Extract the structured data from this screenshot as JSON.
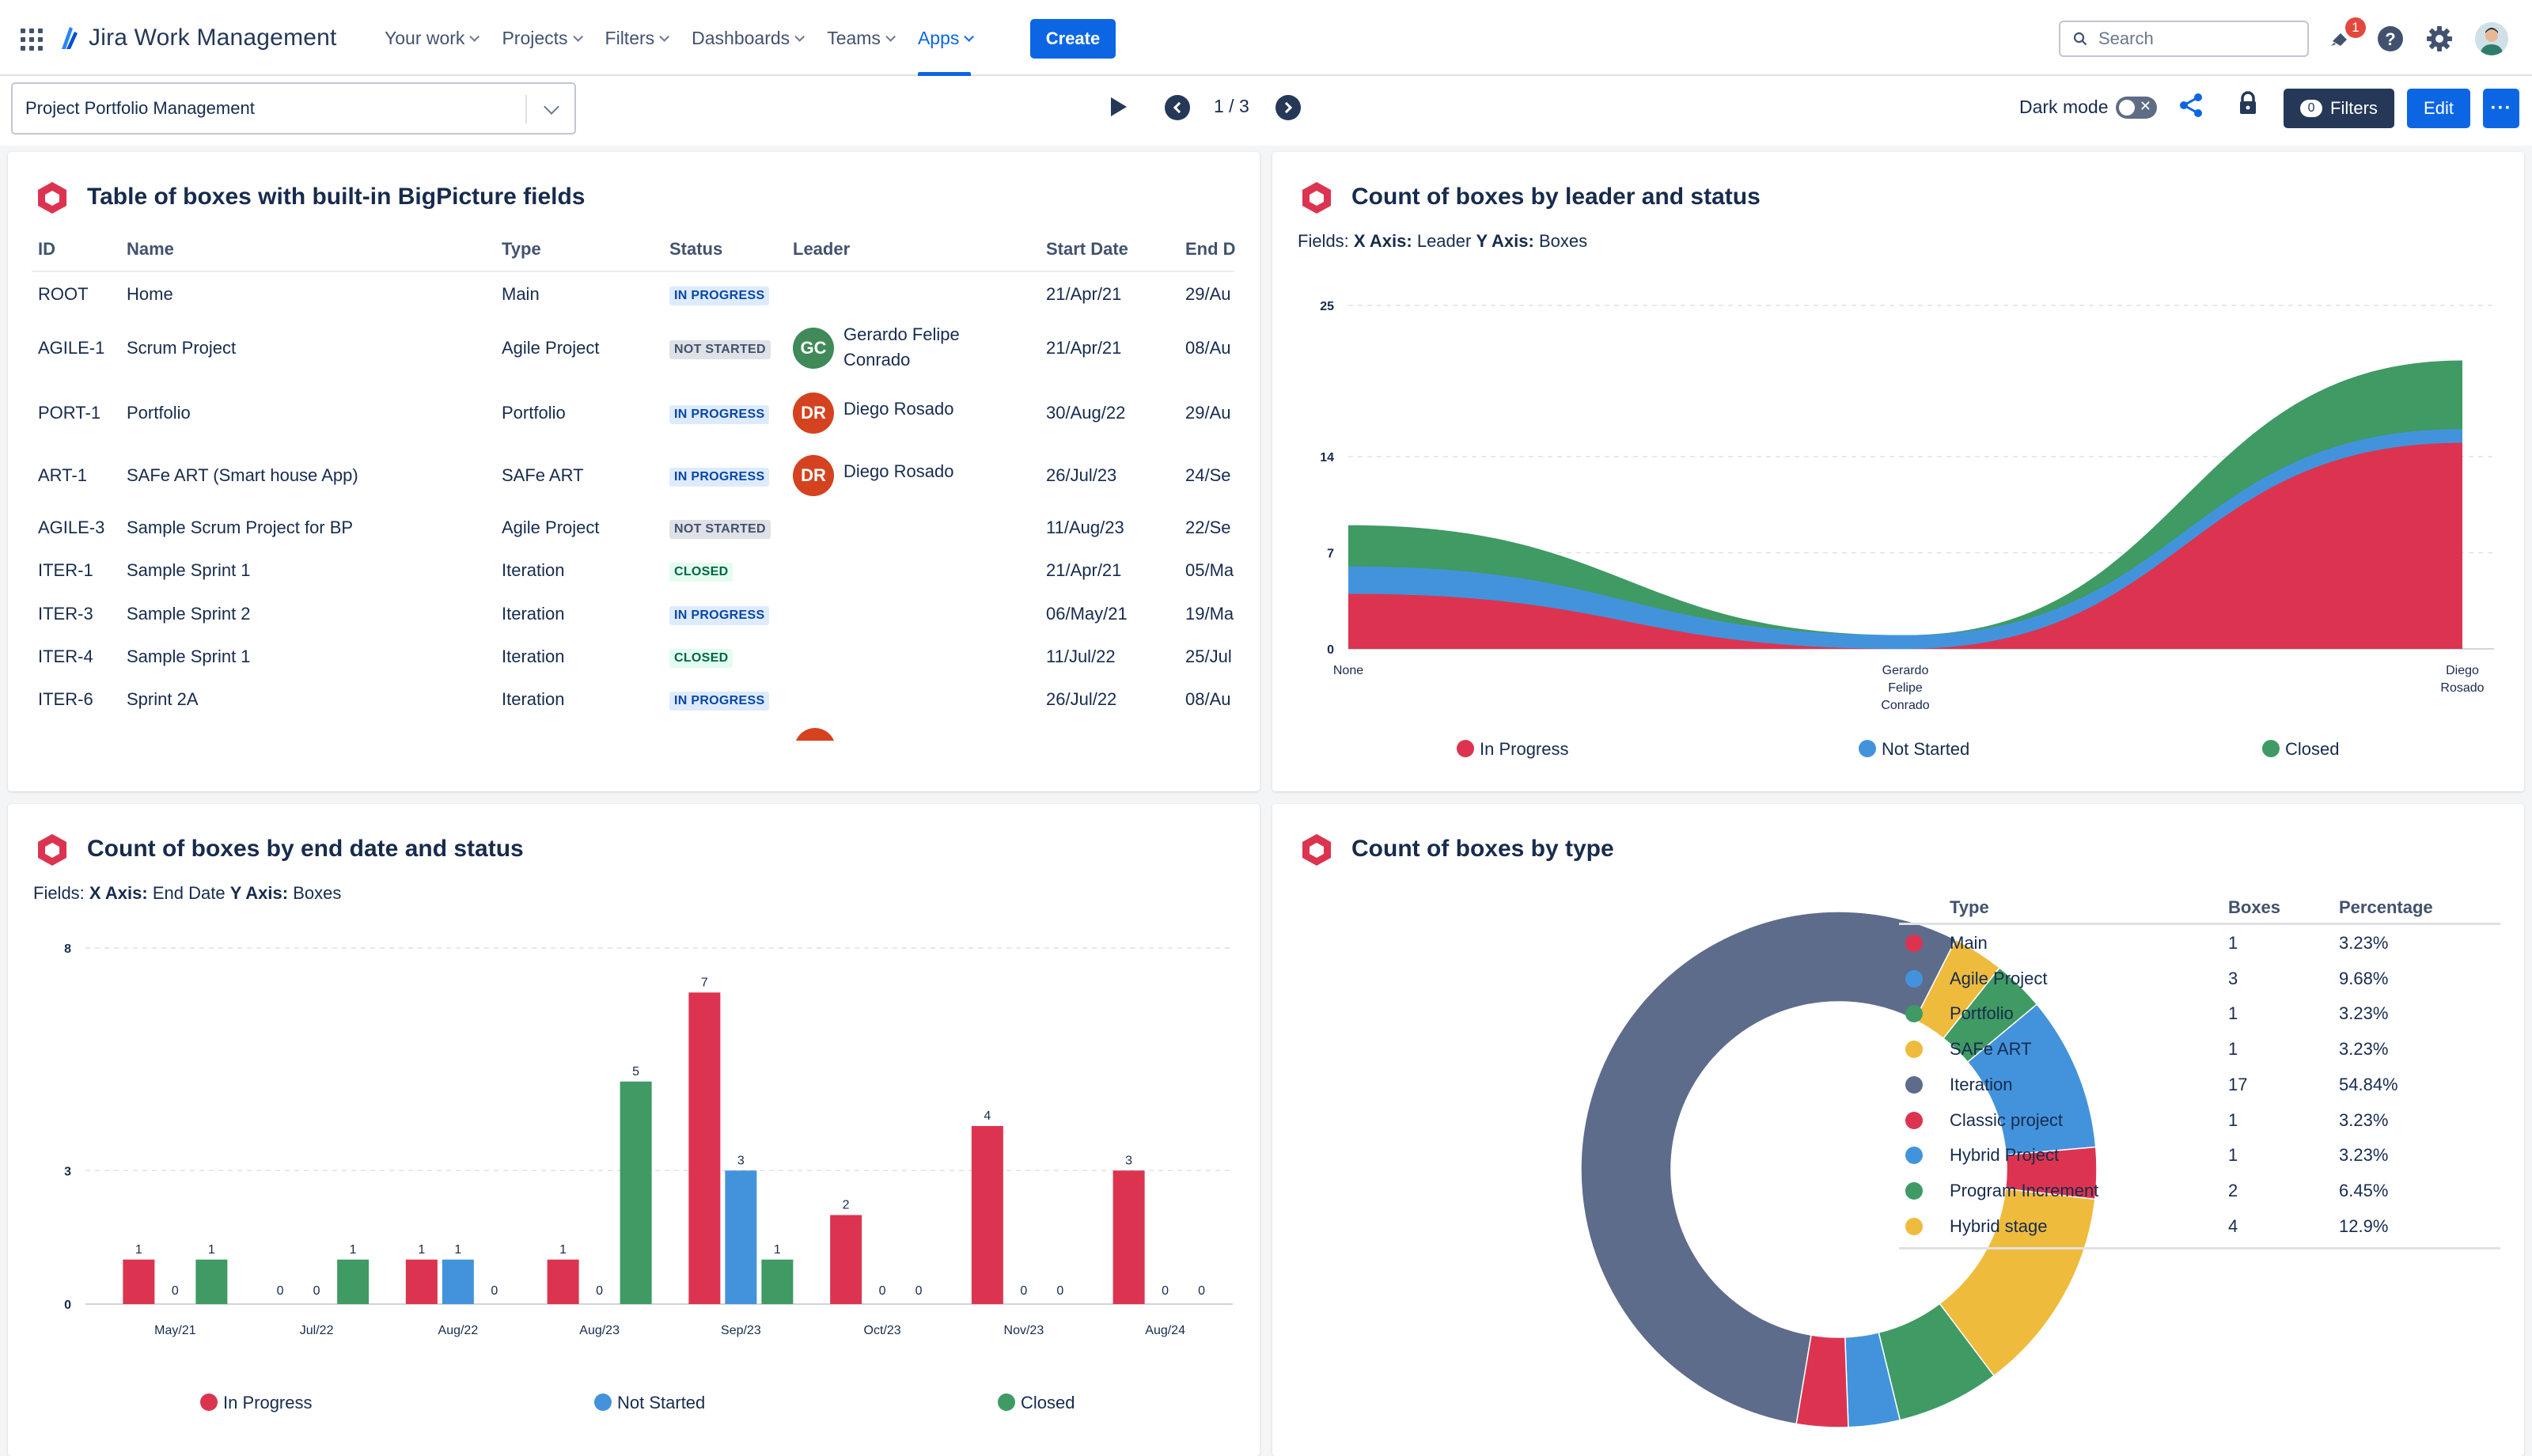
{
  "app": {
    "brand": "Jira Work Management",
    "nav": [
      {
        "label": "Your work"
      },
      {
        "label": "Projects"
      },
      {
        "label": "Filters"
      },
      {
        "label": "Dashboards"
      },
      {
        "label": "Teams"
      },
      {
        "label": "Apps",
        "active": true
      }
    ],
    "create_label": "Create",
    "search_placeholder": "Search",
    "notification_count": "1"
  },
  "toolbar": {
    "project": "Project Portfolio Management",
    "page_indicator": "1 / 3",
    "dark_mode_label": "Dark mode",
    "filters_count": "0",
    "filters_label": "Filters",
    "edit_label": "Edit",
    "more_label": "···"
  },
  "table_panel": {
    "title": "Table of boxes with built-in BigPicture fields",
    "columns": [
      "ID",
      "Name",
      "Type",
      "Status",
      "Leader",
      "Start Date",
      "End D"
    ],
    "rows": [
      {
        "id": "ROOT",
        "name": "Home",
        "type": "Main",
        "status": "IN PROGRESS",
        "leader": "",
        "initials": "",
        "start": "21/Apr/21",
        "end": "29/Au"
      },
      {
        "id": "AGILE-1",
        "name": "Scrum Project",
        "type": "Agile Project",
        "status": "NOT STARTED",
        "leader": "Gerardo Felipe Conrado",
        "leader_line1": "Gerardo Felipe",
        "leader_line2": "Conrado",
        "initials": "GC",
        "start": "21/Apr/21",
        "end": "08/Au"
      },
      {
        "id": "PORT-1",
        "name": "Portfolio",
        "type": "Portfolio",
        "status": "IN PROGRESS",
        "leader": "Diego Rosado",
        "initials": "DR",
        "start": "30/Aug/22",
        "end": "29/Au"
      },
      {
        "id": "ART-1",
        "name": "SAFe ART (Smart house App)",
        "type": "SAFe ART",
        "status": "IN PROGRESS",
        "leader": "Diego Rosado",
        "initials": "DR",
        "start": "26/Jul/23",
        "end": "24/Se"
      },
      {
        "id": "AGILE-3",
        "name": "Sample Scrum Project for BP",
        "type": "Agile Project",
        "status": "NOT STARTED",
        "leader": "",
        "initials": "",
        "start": "11/Aug/23",
        "end": "22/Se"
      },
      {
        "id": "ITER-1",
        "name": "Sample Sprint 1",
        "type": "Iteration",
        "status": "CLOSED",
        "leader": "",
        "initials": "",
        "start": "21/Apr/21",
        "end": "05/Ma"
      },
      {
        "id": "ITER-3",
        "name": "Sample Sprint 2",
        "type": "Iteration",
        "status": "IN PROGRESS",
        "leader": "",
        "initials": "",
        "start": "06/May/21",
        "end": "19/Ma"
      },
      {
        "id": "ITER-4",
        "name": "Sample Sprint 1",
        "type": "Iteration",
        "status": "CLOSED",
        "leader": "",
        "initials": "",
        "start": "11/Jul/22",
        "end": "25/Jul"
      },
      {
        "id": "ITER-6",
        "name": "Sprint 2A",
        "type": "Iteration",
        "status": "IN PROGRESS",
        "leader": "",
        "initials": "",
        "start": "26/Jul/22",
        "end": "08/Au"
      }
    ]
  },
  "leader_panel": {
    "title": "Count of boxes by leader and status",
    "fields_x_label": "X Axis:",
    "fields_x_value": "Leader",
    "fields_y_label": "Y Axis:",
    "fields_y_value": "Boxes",
    "fields_prefix": "Fields:"
  },
  "enddate_panel": {
    "title": "Count of boxes by end date and status",
    "fields_prefix": "Fields:",
    "fields_x_label": "X Axis:",
    "fields_x_value": "End Date",
    "fields_y_label": "Y Axis:",
    "fields_y_value": "Boxes"
  },
  "type_panel": {
    "title": "Count of boxes by type",
    "columns": [
      "Type",
      "Boxes",
      "Percentage"
    ]
  },
  "colors": {
    "in_progress": "#dc3450",
    "not_started": "#4393dc",
    "closed": "#3f9a64",
    "main": "#dc3450",
    "agile": "#4393dc",
    "portfolio": "#3f9a64",
    "safe": "#efbb3c",
    "iteration": "#5e6c8c",
    "accent": "#0c66e4"
  },
  "chart_data": [
    {
      "type": "area",
      "categories": [
        "None",
        "Gerardo Felipe Conrado",
        "Diego Rosado"
      ],
      "category_lines": [
        [
          "None"
        ],
        [
          "Gerardo",
          "Felipe",
          "Conrado"
        ],
        [
          "Diego",
          "Rosado"
        ]
      ],
      "series": [
        {
          "name": "In Progress",
          "values": [
            4,
            0,
            15
          ]
        },
        {
          "name": "Not Started",
          "values": [
            2,
            1,
            1
          ]
        },
        {
          "name": "Closed",
          "values": [
            3,
            0,
            5
          ]
        }
      ],
      "stacked": true,
      "yticks": [
        "0",
        "7",
        "14",
        "25"
      ],
      "ytick_values": [
        0,
        7,
        14,
        25
      ],
      "ylim": [
        0,
        25
      ],
      "legend": "bottom"
    },
    {
      "type": "bar",
      "categories": [
        "May/21",
        "Jul/22",
        "Aug/22",
        "Aug/23",
        "Sep/23",
        "Oct/23",
        "Nov/23",
        "Aug/24"
      ],
      "series": [
        {
          "name": "In Progress",
          "values": [
            1,
            0,
            1,
            1,
            7,
            2,
            4,
            3
          ]
        },
        {
          "name": "Not Started",
          "values": [
            0,
            0,
            1,
            0,
            3,
            0,
            0,
            0
          ]
        },
        {
          "name": "Closed",
          "values": [
            1,
            1,
            0,
            5,
            1,
            0,
            0,
            0
          ]
        }
      ],
      "yticks": [
        "0",
        "3",
        "8"
      ],
      "ytick_values": [
        0,
        3,
        8
      ],
      "ylim": [
        0,
        8
      ],
      "legend": "bottom"
    },
    {
      "type": "pie",
      "donut": true,
      "slices": [
        {
          "label": "Main",
          "value": 1,
          "percent": "3.23%",
          "color": "#dc3450"
        },
        {
          "label": "Agile Project",
          "value": 3,
          "percent": "9.68%",
          "color": "#4393dc"
        },
        {
          "label": "Portfolio",
          "value": 1,
          "percent": "3.23%",
          "color": "#3f9a64"
        },
        {
          "label": "SAFe ART",
          "value": 1,
          "percent": "3.23%",
          "color": "#efbb3c"
        },
        {
          "label": "Iteration",
          "value": 17,
          "percent": "54.84%",
          "color": "#5e6c8c"
        },
        {
          "label": "Classic project",
          "value": 1,
          "percent": "3.23%",
          "color": "#dc3450"
        },
        {
          "label": "Hybrid Project",
          "value": 1,
          "percent": "3.23%",
          "color": "#4393dc"
        },
        {
          "label": "Program Increment",
          "value": 2,
          "percent": "6.45%",
          "color": "#3f9a64"
        },
        {
          "label": "Hybrid stage",
          "value": 4,
          "percent": "12.9%",
          "color": "#efbb3c"
        }
      ]
    }
  ]
}
